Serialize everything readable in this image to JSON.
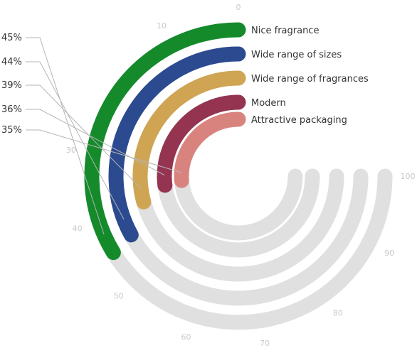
{
  "chart_data": {
    "type": "radial-bar",
    "axis": {
      "min": 0,
      "max": 100,
      "ticks": [
        0,
        10,
        30,
        40,
        50,
        60,
        70,
        80,
        90,
        100
      ]
    },
    "categories": [
      "Nice fragrance",
      "Wide range of sizes",
      "Wide range of fragrances",
      "Modern",
      "Attractive packaging"
    ],
    "values": [
      45,
      44,
      39,
      36,
      35
    ],
    "value_labels": [
      "45%",
      "44%",
      "39%",
      "36%",
      "35%"
    ],
    "colors": [
      "#148a2b",
      "#2c4a8f",
      "#cfa553",
      "#943451",
      "#d9837f"
    ],
    "track_color": "#e0e0e0",
    "legend": "top-right"
  }
}
